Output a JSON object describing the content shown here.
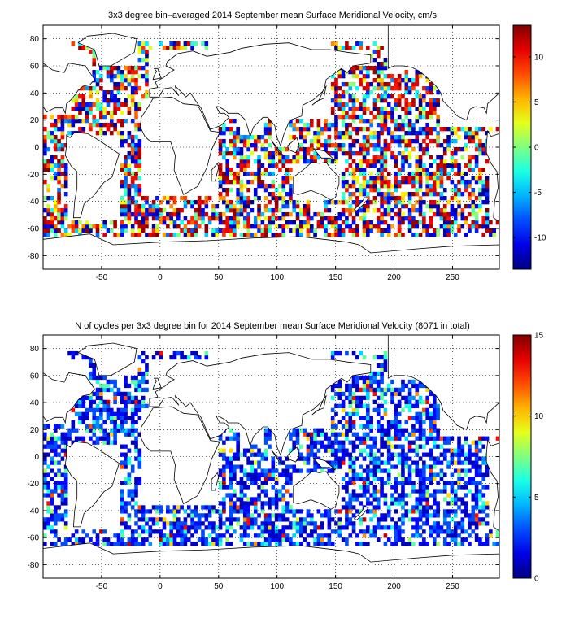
{
  "chart_data": [
    {
      "type": "heatmap",
      "title": "3x3 degree bin–averaged 2014 September mean Surface Meridional Velocity, cm/s",
      "xlim": [
        -100,
        290
      ],
      "ylim": [
        -90,
        90
      ],
      "bin_size_deg": 3,
      "x_ticks": [
        -50,
        0,
        50,
        100,
        150,
        200,
        250
      ],
      "y_ticks": [
        80,
        60,
        40,
        20,
        0,
        -20,
        -40,
        -60,
        -80
      ],
      "colorbar": {
        "range": [
          -13.5,
          13.5
        ],
        "ticks": [
          10,
          5,
          0,
          -5,
          -10
        ],
        "colormap": "jet"
      },
      "grid": true,
      "value_distribution": "dense random-looking values across ice-free oceans, mostly saturated red and dark blue extremes with scattered intermediate colors"
    },
    {
      "type": "heatmap",
      "title": "N of cycles per 3x3 degree bin for 2014 September mean Surface Meridional Velocity (8071 in total)",
      "xlim": [
        -100,
        290
      ],
      "ylim": [
        -90,
        90
      ],
      "bin_size_deg": 3,
      "total_cycles": 8071,
      "x_ticks": [
        -50,
        0,
        50,
        100,
        150,
        200,
        250
      ],
      "y_ticks": [
        80,
        60,
        40,
        20,
        0,
        -20,
        -40,
        -60,
        -80
      ],
      "colorbar": {
        "range": [
          0,
          15
        ],
        "ticks": [
          15,
          10,
          5,
          0
        ],
        "colormap": "jet"
      },
      "grid": true,
      "value_distribution": "mostly 1–4 cycles (blue) with occasional higher counts (cyan/yellow/red), higher in Mediterranean and NW Pacific"
    }
  ]
}
